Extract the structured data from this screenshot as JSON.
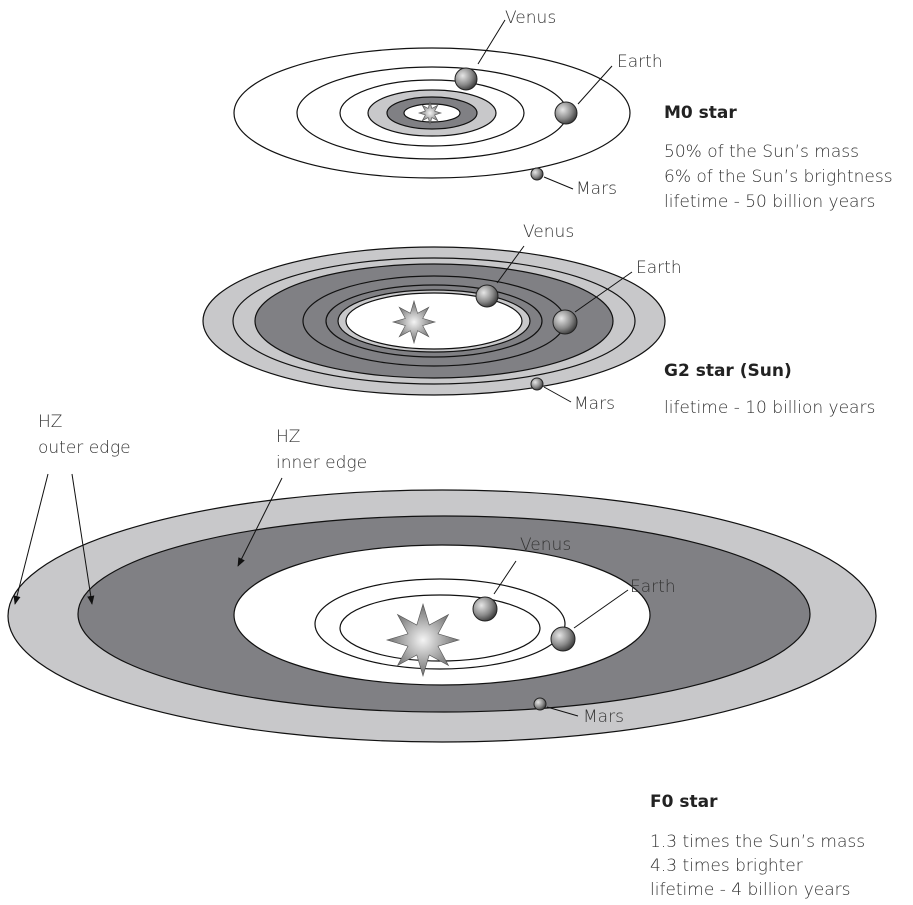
{
  "systems": [
    {
      "name": "M0 star",
      "planets": [
        "Venus",
        "Earth",
        "Mars"
      ],
      "description": [
        "50% of the Sun’s mass",
        "6% of the Sun’s brightness",
        "lifetime - 50 billion years"
      ]
    },
    {
      "name": "G2 star (Sun)",
      "planets": [
        "Venus",
        "Earth",
        "Mars"
      ],
      "description": [
        "lifetime - 10 billion years"
      ]
    },
    {
      "name": "F0 star",
      "planets": [
        "Venus",
        "Earth",
        "Mars"
      ],
      "description": [
        "1.3 times the Sun’s mass",
        "4.3 times brighter",
        "lifetime - 4 billion years"
      ]
    }
  ],
  "labels": {
    "hz_outer": [
      "HZ",
      "outer edge"
    ],
    "hz_inner": [
      "HZ",
      "inner edge"
    ]
  }
}
